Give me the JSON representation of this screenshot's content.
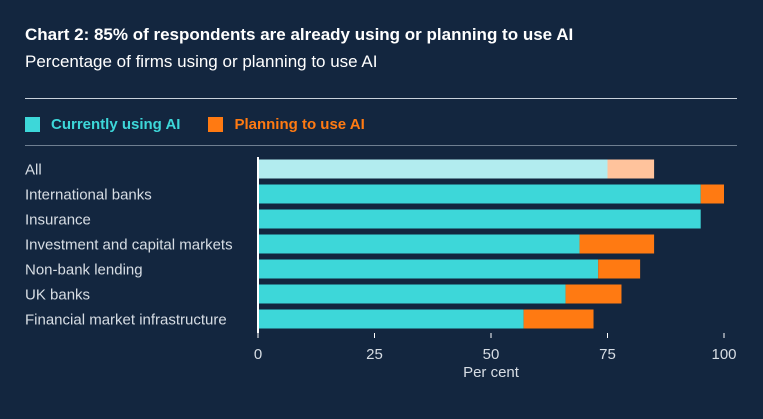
{
  "title": "Chart 2: 85% of respondents are already using or planning to use AI",
  "subtitle": "Percentage of firms using or planning to use AI",
  "colors": {
    "background": "#13263f",
    "currently": "#3dd7d9",
    "planning": "#ff7a12",
    "currently_highlight": "#b2ecef",
    "planning_highlight": "#ffc39c",
    "axis": "#ffffff",
    "label": "#d7dde4"
  },
  "chart_data": {
    "type": "bar",
    "orientation": "horizontal",
    "stacked": true,
    "title": "Chart 2: 85% of respondents are already using or planning to use AI",
    "subtitle": "Percentage of firms using or planning to use AI",
    "xlabel": "Per cent",
    "ylabel": "",
    "xlim": [
      0,
      100
    ],
    "xticks": [
      0,
      25,
      50,
      75,
      100
    ],
    "grid": false,
    "legend_position": "top-left",
    "categories": [
      "All",
      "International banks",
      "Insurance",
      "Investment and capital markets",
      "Non-bank lending",
      "UK banks",
      "Financial market infrastructure"
    ],
    "series": [
      {
        "name": "Currently using AI",
        "values": [
          75,
          95,
          95,
          69,
          73,
          66,
          57
        ]
      },
      {
        "name": "Planning to use AI",
        "values": [
          10,
          5,
          0,
          16,
          9,
          12,
          15
        ]
      }
    ],
    "highlighted_category": "All"
  }
}
